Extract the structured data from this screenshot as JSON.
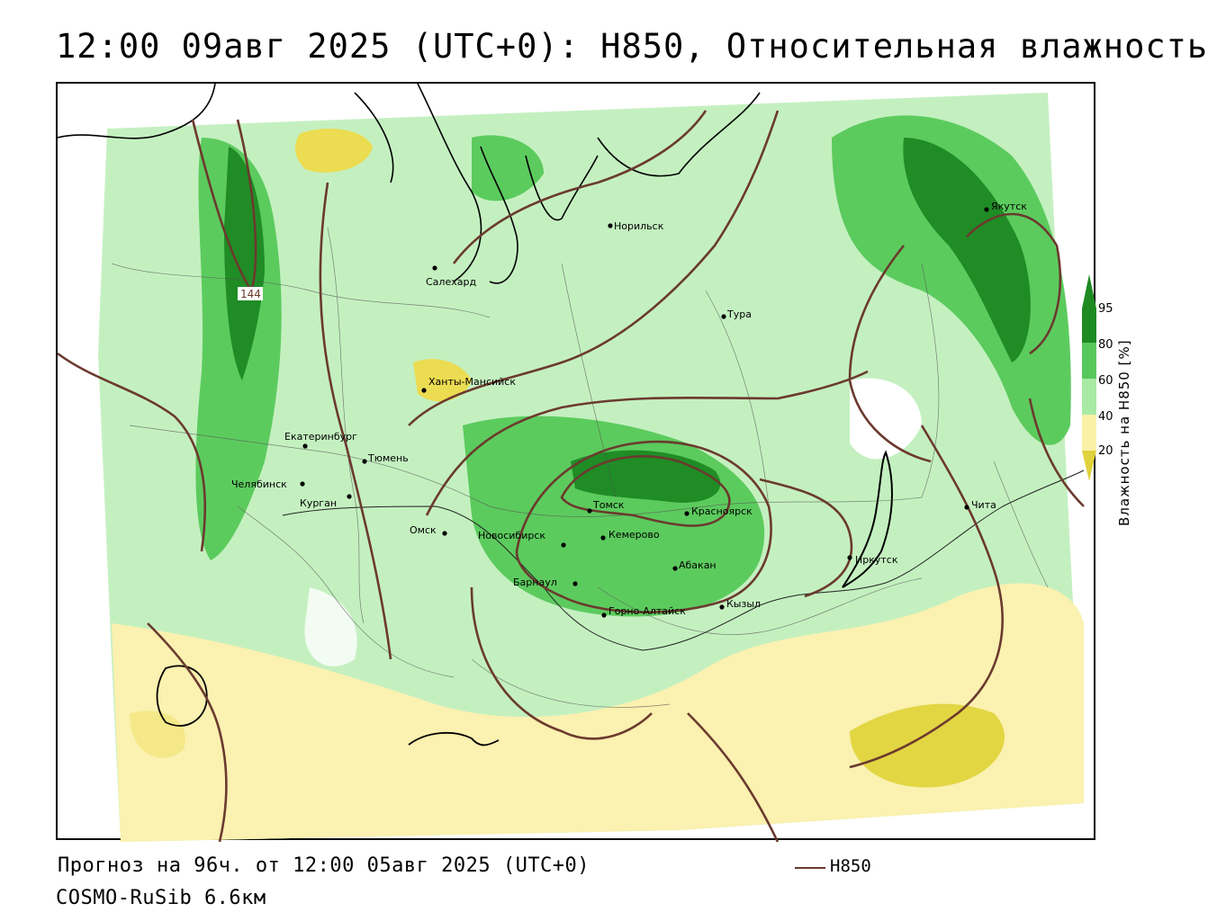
{
  "header": {
    "title": "12:00 09авг 2025 (UTC+0): H850, Относительная влажность"
  },
  "footer": {
    "forecast": "Прогноз на 96ч. от 12:00 05авг 2025 (UTC+0)",
    "model": "COSMO-RuSib 6.6км",
    "legend_label": "H850"
  },
  "colorbar": {
    "title": "Влажность на H850 [%]",
    "ticks": [
      "95",
      "80",
      "60",
      "40",
      "20"
    ],
    "colors": [
      "#1d8a22",
      "#58c85c",
      "#a8eaa4",
      "#ffffff",
      "#fbf0a8",
      "#e0d23c"
    ]
  },
  "map": {
    "contour_label": "144",
    "contour_color": "#6b3a2e",
    "cities": [
      {
        "name": "Якутск"
      },
      {
        "name": "Норильск"
      },
      {
        "name": "Салехард"
      },
      {
        "name": "Тура"
      },
      {
        "name": "Ханты-Мансийск"
      },
      {
        "name": "Екатеринбург"
      },
      {
        "name": "Тюмень"
      },
      {
        "name": "Челябинск"
      },
      {
        "name": "Курган"
      },
      {
        "name": "Омск"
      },
      {
        "name": "Новосибирск"
      },
      {
        "name": "Томск"
      },
      {
        "name": "Кемерово"
      },
      {
        "name": "Красноярск"
      },
      {
        "name": "Абакан"
      },
      {
        "name": "Барнаул"
      },
      {
        "name": "Горно-Алтайск"
      },
      {
        "name": "Кызыл"
      },
      {
        "name": "Иркутск"
      },
      {
        "name": "Чита"
      }
    ]
  }
}
